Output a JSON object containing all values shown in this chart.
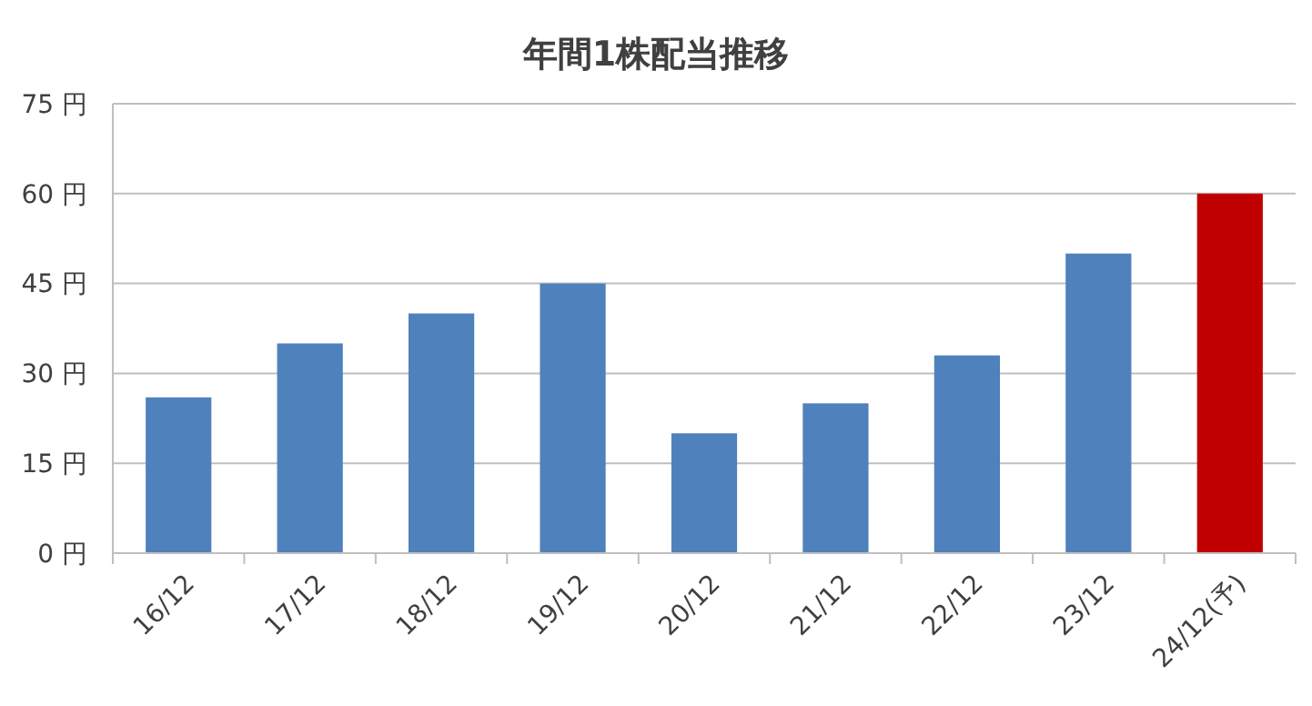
{
  "chart_data": {
    "type": "bar",
    "title": "年間1株配当推移",
    "categories": [
      "16/12",
      "17/12",
      "18/12",
      "19/12",
      "20/12",
      "21/12",
      "22/12",
      "23/12",
      "24/12(予)"
    ],
    "values": [
      26,
      35,
      40,
      45,
      20,
      25,
      33,
      50,
      60
    ],
    "colors": [
      "#4f81bd",
      "#4f81bd",
      "#4f81bd",
      "#4f81bd",
      "#4f81bd",
      "#4f81bd",
      "#4f81bd",
      "#4f81bd",
      "#c00000"
    ],
    "ylim": [
      0,
      75
    ],
    "yticks": [
      {
        "value": 0,
        "label": "0 円"
      },
      {
        "value": 15,
        "label": "15 円"
      },
      {
        "value": 30,
        "label": "30 円"
      },
      {
        "value": 45,
        "label": "45 円"
      },
      {
        "value": 60,
        "label": "60 円"
      },
      {
        "value": 75,
        "label": "75 円"
      }
    ],
    "grid": "y"
  }
}
